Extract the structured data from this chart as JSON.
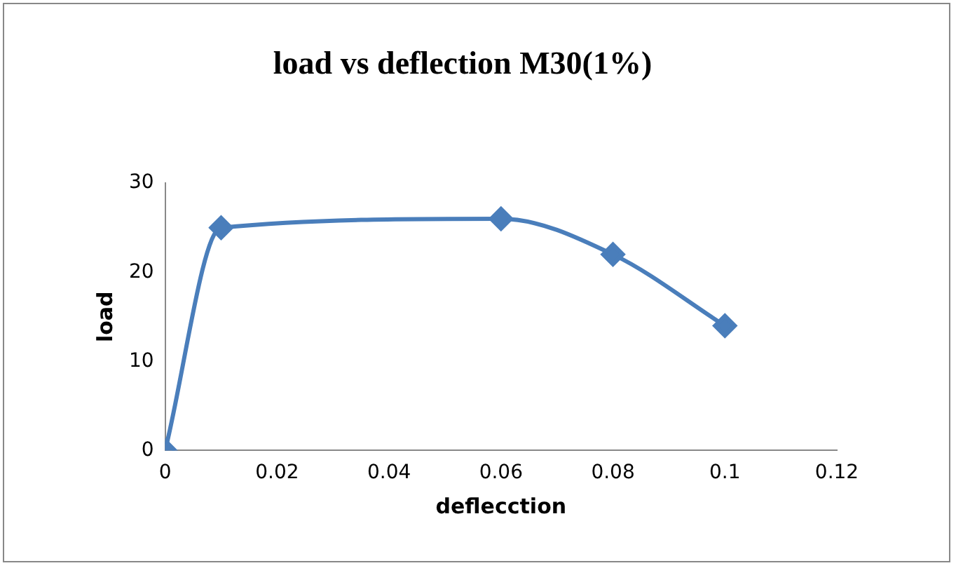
{
  "chart_data": {
    "type": "line",
    "title": "load vs deflection M30(1%)",
    "xlabel": "deflecction",
    "ylabel": "load",
    "series": [
      {
        "color": "#4a7ebb",
        "x": [
          0,
          0.01,
          0.06,
          0.08,
          0.1
        ],
        "values": [
          0,
          25,
          26,
          22,
          14
        ]
      }
    ],
    "xlim": [
      0,
      0.12
    ],
    "xticks": [
      0,
      0.02,
      0.04,
      0.06,
      0.08,
      0.1,
      0.12
    ],
    "ylim": [
      0,
      30
    ],
    "yticks": [
      0,
      10,
      20,
      30
    ],
    "grid": false,
    "legend": false,
    "marker": "diamond",
    "line_style": "solid"
  }
}
